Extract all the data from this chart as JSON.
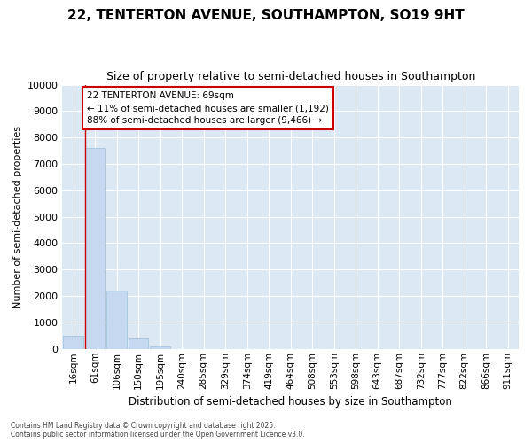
{
  "title_line1": "22, TENTERTON AVENUE, SOUTHAMPTON, SO19 9HT",
  "title_line2": "Size of property relative to semi-detached houses in Southampton",
  "xlabel": "Distribution of semi-detached houses by size in Southampton",
  "ylabel": "Number of semi-detached properties",
  "categories": [
    "16sqm",
    "61sqm",
    "106sqm",
    "150sqm",
    "195sqm",
    "240sqm",
    "285sqm",
    "329sqm",
    "374sqm",
    "419sqm",
    "464sqm",
    "508sqm",
    "553sqm",
    "598sqm",
    "643sqm",
    "687sqm",
    "732sqm",
    "777sqm",
    "822sqm",
    "866sqm",
    "911sqm"
  ],
  "values": [
    500,
    7600,
    2200,
    380,
    100,
    0,
    0,
    0,
    0,
    0,
    0,
    0,
    0,
    0,
    0,
    0,
    0,
    0,
    0,
    0,
    0
  ],
  "ylim": [
    0,
    10000
  ],
  "yticks": [
    0,
    1000,
    2000,
    3000,
    4000,
    5000,
    6000,
    7000,
    8000,
    9000,
    10000
  ],
  "bar_color": "#c5d8ef",
  "bar_edge_color": "#9dbedd",
  "background_color": "#dce9f5",
  "grid_color": "#ffffff",
  "annotation_text_line1": "22 TENTERTON AVENUE: 69sqm",
  "annotation_text_line2": "← 11% of semi-detached houses are smaller (1,192)",
  "annotation_text_line3": "88% of semi-detached houses are larger (9,466) →",
  "vline_color": "#cc0000",
  "annotation_box_facecolor": "#ffffff",
  "annotation_box_edgecolor": "#cc0000",
  "footer_line1": "Contains HM Land Registry data © Crown copyright and database right 2025.",
  "footer_line2": "Contains public sector information licensed under the Open Government Licence v3.0.",
  "fig_bg": "#ffffff",
  "title_fontsize": 11,
  "subtitle_fontsize": 9
}
